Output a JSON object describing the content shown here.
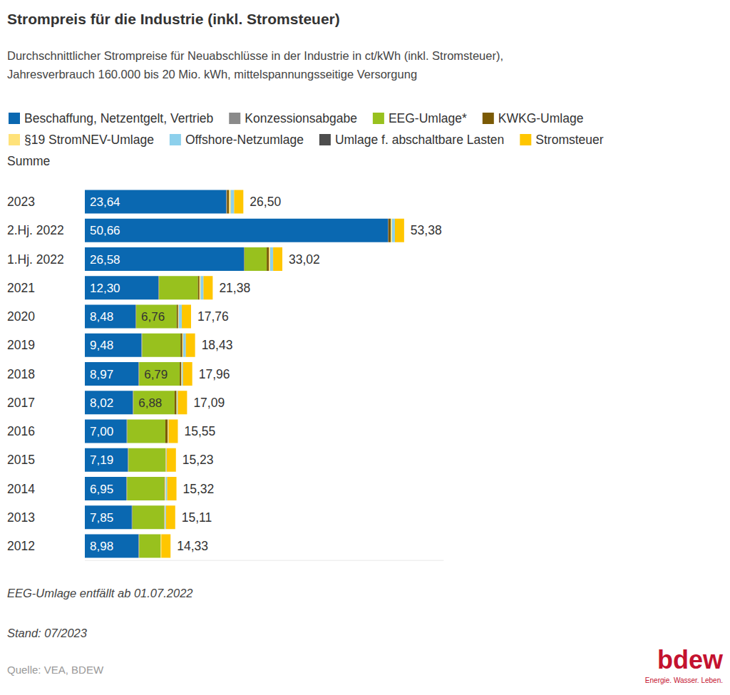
{
  "chart_data": {
    "type": "bar",
    "orientation": "horizontal",
    "stacked": true,
    "data_labels": true,
    "tick_labels": "y",
    "grid": false,
    "title": "Strompreis für die Industrie (inkl. Stromsteuer)",
    "subtitle": [
      "Durchschnittlicher Strompreise für Neuabschlüsse in der Industrie in ct/kWh (inkl. Stromsteuer),",
      "Jahresverbrauch 160.000 bis 20 Mio. kWh, mittelspannungsseitige Versorgung"
    ],
    "categories": [
      "2023",
      "2.Hj. 2022",
      "1.Hj. 2022",
      "2021",
      "2020",
      "2019",
      "2018",
      "2017",
      "2016",
      "2015",
      "2014",
      "2013",
      "2012"
    ],
    "xlim": [
      0,
      60
    ],
    "xticks": [],
    "series": [
      {
        "name": "Beschaffung, Netzentgelt, Vertrieb",
        "color": "#0a68b1",
        "values": [
          23.64,
          50.66,
          26.58,
          12.3,
          8.48,
          9.48,
          8.97,
          8.02,
          7.0,
          7.19,
          6.95,
          7.85,
          8.98
        ],
        "value_labels": [
          "23,64",
          "50,66",
          "26,58",
          "12,30",
          "8,48",
          "9,48",
          "8,97",
          "8,02",
          "7,00",
          "7,19",
          "6,95",
          "7,85",
          "8,98"
        ]
      },
      {
        "name": "Konzessionsabgabe",
        "color": "#8a8a8a",
        "values": [
          0.11,
          0.11,
          0.11,
          0.11,
          0.11,
          0.11,
          0.11,
          0.11,
          0.11,
          0.11,
          0.11,
          0.11,
          0.11
        ]
      },
      {
        "name": "EEG-Umlage*",
        "color": "#98c11e",
        "values": [
          0,
          0,
          3.72,
          6.5,
          6.76,
          6.41,
          6.79,
          6.88,
          6.35,
          6.17,
          6.24,
          5.28,
          3.59
        ],
        "value_labels": [
          null,
          null,
          null,
          null,
          "6,76",
          null,
          "6,79",
          "6,88",
          null,
          null,
          null,
          null,
          null
        ]
      },
      {
        "name": "KWKG-Umlage",
        "color": "#7b5a05",
        "values": [
          0.36,
          0.38,
          0.38,
          0.25,
          0.24,
          0.3,
          0.26,
          0.32,
          0.38,
          0.05,
          0.06,
          0.06,
          0.01
        ]
      },
      {
        "name": "§19 StromNEV-Umlage",
        "color": "#ffe27a",
        "values": [
          0.29,
          0.19,
          0.19,
          0.2,
          0.12,
          0.15,
          0.12,
          0.09,
          0.1,
          0.09,
          0.16,
          0.1,
          0.1
        ]
      },
      {
        "name": "Offshore-Netzumlage",
        "color": "#8dd0ec",
        "values": [
          0.56,
          0.5,
          0.5,
          0.47,
          0.5,
          0.43,
          0.16,
          0.11,
          0.05,
          0.07,
          0.25,
          0.17,
          0
        ]
      },
      {
        "name": "Umlage f. abschaltbare Lasten",
        "color": "#4d4d4d",
        "values": [
          0,
          0,
          0,
          0.01,
          0.01,
          0.01,
          0.01,
          0.02,
          0.02,
          0.01,
          0.01,
          0,
          0
        ]
      },
      {
        "name": "Stromsteuer",
        "color": "#ffc600",
        "values": [
          1.54,
          1.54,
          1.54,
          1.54,
          1.54,
          1.54,
          1.54,
          1.54,
          1.54,
          1.54,
          1.54,
          1.54,
          1.54
        ]
      }
    ],
    "sum": {
      "name": "Summe",
      "values": [
        26.5,
        53.38,
        33.02,
        21.38,
        17.76,
        18.43,
        17.96,
        17.09,
        15.55,
        15.23,
        15.32,
        15.11,
        14.33
      ],
      "value_labels": [
        "26,50",
        "53,38",
        "33,02",
        "21,38",
        "17,76",
        "18,43",
        "17,96",
        "17,09",
        "15,55",
        "15,23",
        "15,32",
        "15,11",
        "14,33"
      ]
    },
    "footnote": "EEG-Umlage entfällt ab 01.07.2022",
    "stand": "Stand: 07/2023",
    "source": "Quelle: VEA, BDEW",
    "logo": {
      "text": "bdew",
      "tagline": "Energie. Wasser. Leben."
    }
  }
}
